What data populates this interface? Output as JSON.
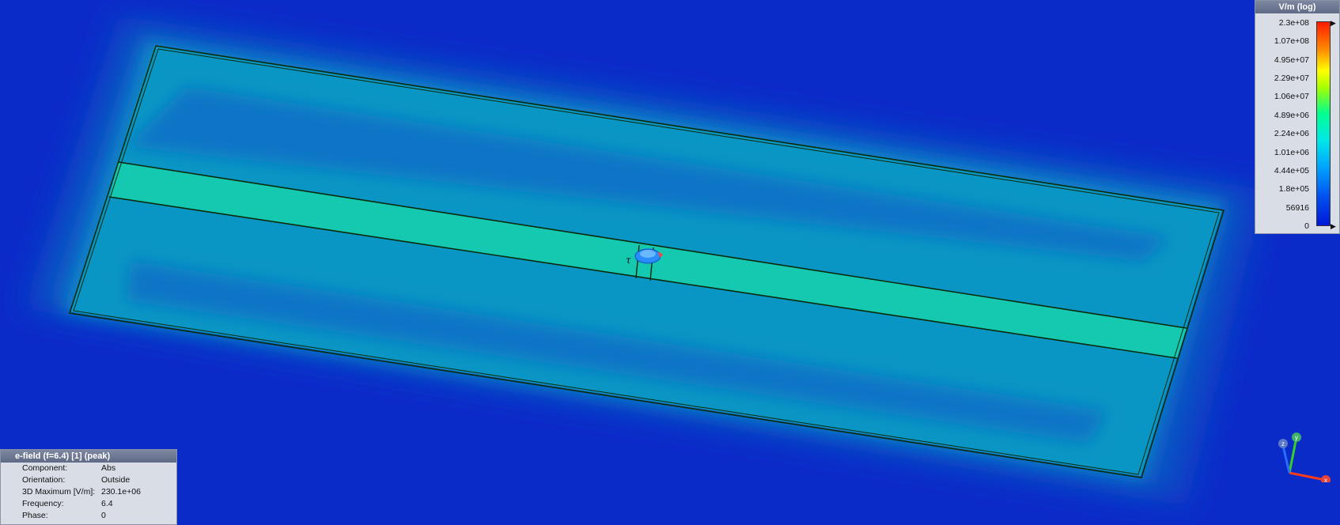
{
  "colors": {
    "background": "#0b2bc9",
    "field_low": "#0a50c8",
    "field_mid": "#0aa0c8",
    "field_high": "#10d0b0",
    "trace": "#0a2a0a"
  },
  "legend": {
    "title": "V/m (log)",
    "ticks": [
      "2.3e+08",
      "1.07e+08",
      "4.95e+07",
      "2.29e+07",
      "1.06e+07",
      "4.89e+06",
      "2.24e+06",
      "1.01e+06",
      "4.44e+05",
      "1.8e+05",
      "56916",
      "0"
    ]
  },
  "port": {
    "label": "τ",
    "icon": "port-cone-icon"
  },
  "info": {
    "title": "e-field (f=6.4) [1] (peak)",
    "rows": [
      {
        "key": "Component:",
        "value": "Abs"
      },
      {
        "key": "Orientation:",
        "value": "Outside"
      },
      {
        "key": "3D Maximum [V/m]:",
        "value": "230.1e+06"
      },
      {
        "key": "Frequency:",
        "value": "6.4"
      },
      {
        "key": "Phase:",
        "value": "0"
      }
    ]
  },
  "axes": {
    "x": "x",
    "y": "y",
    "z": "z"
  }
}
